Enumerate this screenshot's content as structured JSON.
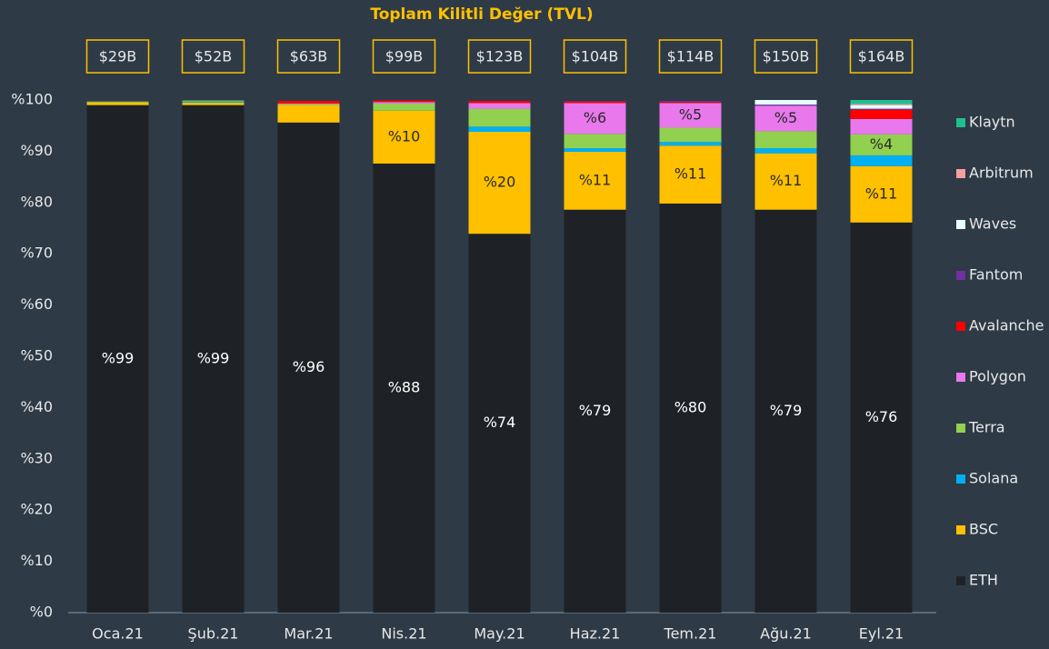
{
  "chart_data": {
    "type": "stacked_bar",
    "title": "Toplam Kilitli Değer (TVL)",
    "annotations": [
      "$29B",
      "$52B",
      "$63B",
      "$99B",
      "$123B",
      "$104B",
      "$114B",
      "$150B",
      "$164B"
    ],
    "categories": [
      "Oca.21",
      "Şub.21",
      "Mar.21",
      "Nis.21",
      "May.21",
      "Haz.21",
      "Tem.21",
      "Ağu.21",
      "Eyl.21"
    ],
    "series": [
      {
        "name": "ETH",
        "color": "#1e2226",
        "values": [
          99,
          99,
          95.6,
          87.6,
          73.9,
          78.6,
          79.8,
          78.6,
          76.1
        ],
        "value_labels": [
          "%99",
          "%99",
          "%96",
          "%88",
          "%74",
          "%79",
          "%80",
          "%79",
          "%76"
        ]
      },
      {
        "name": "BSC",
        "color": "#ffc000",
        "values": [
          0.5,
          0.5,
          3.4,
          10.3,
          19.9,
          11.3,
          11.3,
          11,
          11
        ],
        "value_labels": [
          null,
          null,
          null,
          "%10",
          "%20",
          "%11",
          "%11",
          "%11",
          "%11"
        ]
      },
      {
        "name": "Solana",
        "color": "#00b0f0",
        "values": [
          0,
          0.2,
          0,
          0,
          1,
          0.7,
          0.7,
          1,
          2.1
        ]
      },
      {
        "name": "Terra",
        "color": "#92d050",
        "values": [
          0.2,
          0.2,
          0.2,
          1.4,
          3.5,
          2.8,
          2.8,
          3.3,
          4.1
        ],
        "value_labels": [
          null,
          null,
          null,
          null,
          null,
          null,
          null,
          null,
          "%4"
        ]
      },
      {
        "name": "Polygon",
        "color": "#e878ec",
        "values": [
          0,
          0,
          0.1,
          0.3,
          1.1,
          6,
          4.8,
          5,
          3
        ],
        "value_labels": [
          null,
          null,
          null,
          null,
          null,
          "%6",
          "%5",
          "%5",
          null
        ]
      },
      {
        "name": "Avalanche",
        "color": "#ff0000",
        "values": [
          0,
          0,
          0.5,
          0.3,
          0.4,
          0.3,
          0.2,
          0,
          1.8
        ]
      },
      {
        "name": "Fantom",
        "color": "#7030a0",
        "values": [
          0,
          0,
          0,
          0,
          0,
          0.1,
          0.2,
          0.2,
          0.2
        ]
      },
      {
        "name": "Waves",
        "color": "#e6ffff",
        "values": [
          0,
          0,
          0,
          0,
          0,
          0,
          0,
          0.9,
          0.7
        ]
      },
      {
        "name": "Arbitrum",
        "color": "#f4a0a0",
        "values": [
          0,
          0,
          0,
          0,
          0,
          0,
          0,
          0,
          0.2
        ]
      },
      {
        "name": "Klaytn",
        "color": "#1fbf8f",
        "values": [
          0,
          0,
          0,
          0,
          0,
          0,
          0,
          0,
          0.8
        ]
      }
    ],
    "ylim": [
      0,
      100
    ],
    "yticks": [
      {
        "value": 0,
        "label": "%0"
      },
      {
        "value": 10,
        "label": "%10"
      },
      {
        "value": 20,
        "label": "%20"
      },
      {
        "value": 30,
        "label": "%30"
      },
      {
        "value": 40,
        "label": "%40"
      },
      {
        "value": 50,
        "label": "%50"
      },
      {
        "value": 60,
        "label": "%60"
      },
      {
        "value": 70,
        "label": "%70"
      },
      {
        "value": 80,
        "label": "%80"
      },
      {
        "value": 90,
        "label": "%90"
      },
      {
        "value": 100,
        "label": "%100"
      }
    ],
    "legend": "right"
  }
}
